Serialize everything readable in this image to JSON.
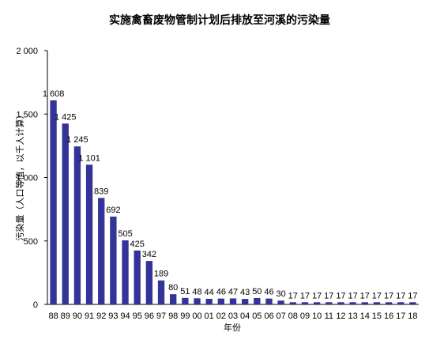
{
  "chart_data": {
    "type": "bar",
    "title": "实施禽畜废物管制计划后排放至河溪的污染量",
    "xlabel": "年份",
    "ylabel": "污染量（人口等值，以千人计算）",
    "categories": [
      "88",
      "89",
      "90",
      "91",
      "92",
      "93",
      "94",
      "95",
      "96",
      "97",
      "98",
      "99",
      "00",
      "01",
      "02",
      "03",
      "04",
      "05",
      "06",
      "07",
      "08",
      "09",
      "10",
      "11",
      "12",
      "13",
      "14",
      "15",
      "16",
      "17",
      "18"
    ],
    "values": [
      1608,
      1425,
      1245,
      1101,
      839,
      692,
      505,
      425,
      342,
      189,
      80,
      51,
      48,
      44,
      46,
      47,
      43,
      50,
      46,
      30,
      17,
      17,
      17,
      17,
      17,
      17,
      17,
      17,
      17,
      17,
      17
    ],
    "data_labels": [
      "1 608",
      "1 425",
      "1 245",
      "1 101",
      "839",
      "692",
      "505",
      "425",
      "342",
      "189",
      "80",
      "51",
      "48",
      "44",
      "46",
      "47",
      "43",
      "50",
      "46",
      "30",
      "17",
      "17",
      "17",
      "17",
      "17",
      "17",
      "17",
      "17",
      "17",
      "17",
      "17"
    ],
    "y_ticks": [
      0,
      500,
      1000,
      1500,
      2000
    ],
    "y_tick_labels": [
      "0",
      "500",
      "1 000",
      "1 500",
      "2 000"
    ],
    "ylim": [
      0,
      2000
    ],
    "grid": false,
    "legend": "none",
    "bar_color": "#333399"
  }
}
